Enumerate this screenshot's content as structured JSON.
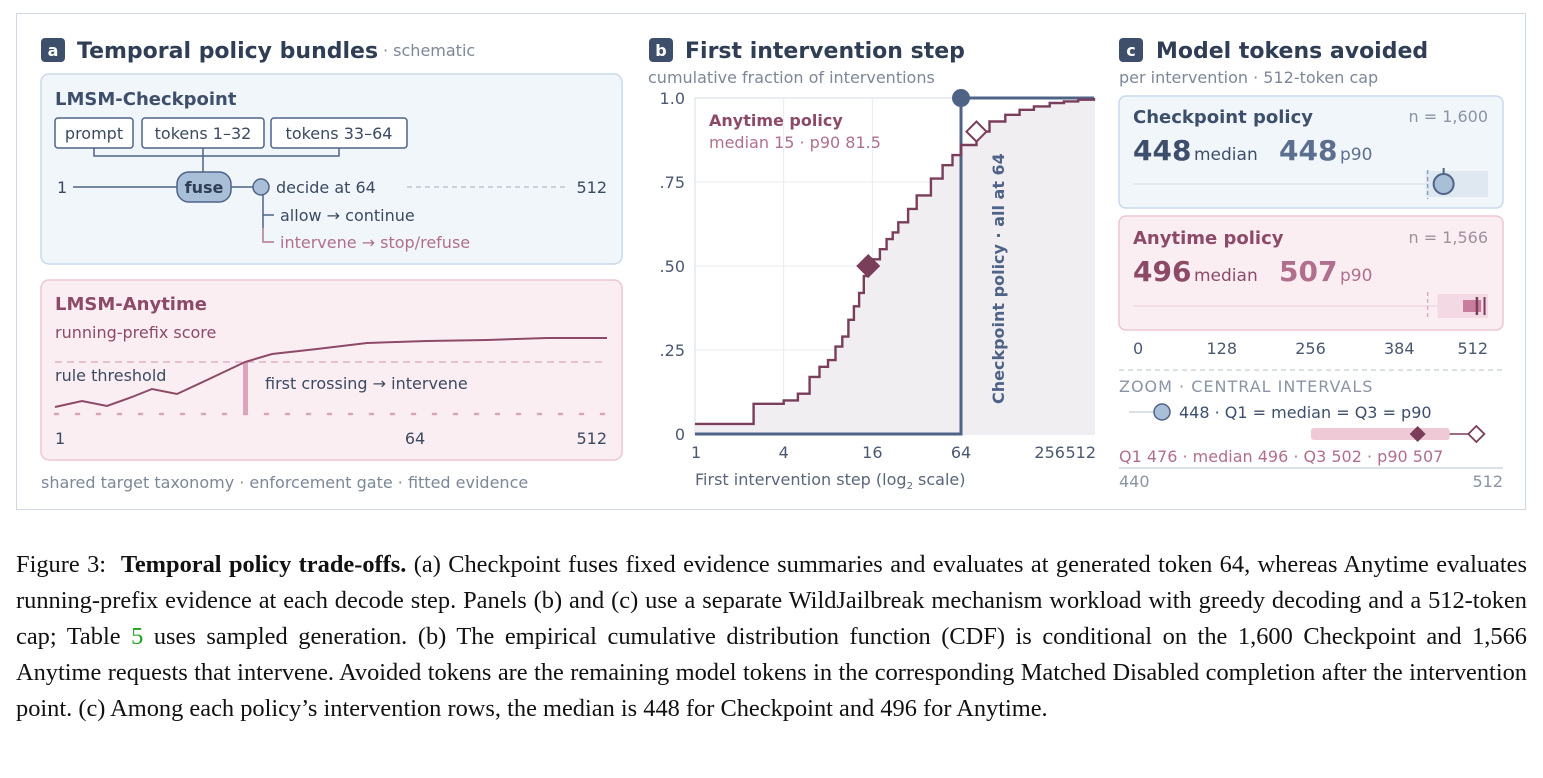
{
  "panel_a": {
    "letter": "a",
    "title": "Temporal policy bundles",
    "subtitle": "· schematic",
    "checkpoint": {
      "title": "LMSM-Checkpoint",
      "chips": [
        "prompt",
        "tokens 1–32",
        "tokens 33–64"
      ],
      "axis_start": "1",
      "axis_end": "512",
      "fuse": "fuse",
      "decide": "decide at 64",
      "allow": "allow → continue",
      "intervene": "intervene → stop/refuse"
    },
    "anytime": {
      "title": "LMSM-Anytime",
      "subtitle": "running-prefix score",
      "threshold": "rule threshold",
      "crossing": "first crossing → intervene",
      "ticks": [
        "1",
        "64",
        "512"
      ]
    },
    "footer": "shared target taxonomy · enforcement gate · fitted evidence"
  },
  "panel_b": {
    "letter": "b",
    "title": "First intervention step",
    "subtitle": "cumulative fraction of interventions",
    "anytime_label": "Anytime policy",
    "anytime_stats": "median 15 · p90 81.5",
    "checkpoint_label": "Checkpoint policy · all at 64",
    "xlabel_main": "First intervention step (log",
    "xlabel_sub": "2",
    "xlabel_end": " scale)"
  },
  "chart_data": {
    "type": "line",
    "x_scale": "log2",
    "xlim": [
      1,
      512
    ],
    "ylim": [
      0,
      1
    ],
    "x_ticks": [
      "1",
      "4",
      "16",
      "64",
      "256",
      "512"
    ],
    "y_ticks": [
      ".25",
      ".50",
      ".75",
      "1.0"
    ],
    "y_zero": "0",
    "series": [
      {
        "name": "Anytime policy",
        "color": "#7a3d5a",
        "x": [
          1,
          2,
          2.5,
          3,
          4,
          5,
          6,
          7,
          8,
          9,
          10,
          11,
          12,
          13,
          14,
          15,
          16,
          18,
          20,
          22,
          24,
          28,
          32,
          40,
          48,
          56,
          64,
          81.5,
          100,
          128,
          160,
          200,
          256,
          320,
          400,
          512
        ],
        "y": [
          0.03,
          0.03,
          0.09,
          0.09,
          0.1,
          0.12,
          0.17,
          0.2,
          0.22,
          0.26,
          0.29,
          0.34,
          0.38,
          0.42,
          0.47,
          0.5,
          0.52,
          0.55,
          0.58,
          0.6,
          0.63,
          0.67,
          0.71,
          0.76,
          0.8,
          0.83,
          0.86,
          0.9,
          0.93,
          0.95,
          0.965,
          0.975,
          0.985,
          0.99,
          0.995,
          1.0
        ]
      },
      {
        "name": "Checkpoint policy",
        "color": "#4f6387",
        "x": [
          1,
          64,
          64,
          512
        ],
        "y": [
          0,
          0,
          1.0,
          1.0
        ]
      }
    ],
    "markers": [
      {
        "label": "median",
        "x": 15,
        "y": 0.5
      },
      {
        "label": "p90",
        "x": 81.5,
        "y": 0.9
      }
    ]
  },
  "panel_c": {
    "letter": "c",
    "title": "Model tokens avoided",
    "subtitle": "per intervention · 512-token cap",
    "checkpoint": {
      "title": "Checkpoint policy",
      "n": "n = 1,600",
      "median": "448",
      "median_word": "median",
      "p90": "448",
      "p90_word": "p90",
      "value": 448
    },
    "anytime": {
      "title": "Anytime policy",
      "n": "n = 1,566",
      "median": "496",
      "median_word": "median",
      "p90": "507",
      "p90_word": "p90",
      "q1": 476,
      "q3": 502,
      "median_value": 496,
      "p90_value": 507
    },
    "axis_ticks": [
      "0",
      "128",
      "256",
      "384",
      "512"
    ],
    "zoom_title": "ZOOM · CENTRAL INTERVALS",
    "zoom_checkpoint": "448 · Q1 = median = Q3 = p90",
    "zoom_anytime": "Q1 476 · median 496 · Q3 502 · p90 507",
    "zoom_ticks": [
      "440",
      "512"
    ]
  },
  "colors": {
    "navy": "#4f6387",
    "plum": "#7a3d5a",
    "blue_box": "#f1f6fb",
    "pink_box": "#fbeef3"
  },
  "caption": {
    "label": "Figure 3:",
    "bold": "Temporal policy trade-offs.",
    "text_1": " (a) Checkpoint fuses fixed evidence summaries and evaluates at generated token 64, whereas Anytime evaluates running-prefix evidence at each decode step. Panels (b) and (c) use a separate WildJailbreak mechanism workload with greedy decoding and a 512-token cap; Table ",
    "table_ref": "5",
    "text_2": " uses sampled generation. (b) The empirical cumulative distribution function (CDF) is conditional on the 1,600 Checkpoint and 1,566 Anytime requests that intervene. Avoided tokens are the remaining model tokens in the corresponding Matched Disabled completion after the intervention point. (c) Among each policy’s intervention rows, the median is 448 for Checkpoint and 496 for Anytime."
  }
}
